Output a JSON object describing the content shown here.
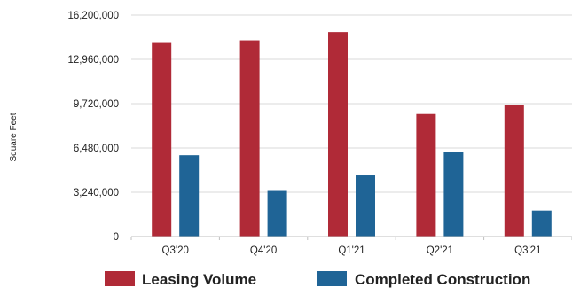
{
  "chart_data": {
    "type": "bar",
    "title": "",
    "xlabel": "",
    "ylabel": "Square Feet",
    "categories": [
      "Q3'20",
      "Q4'20",
      "Q1'21",
      "Q2'21",
      "Q3'21"
    ],
    "series": [
      {
        "name": "Leasing Volume",
        "color": "#b02a37",
        "values": [
          14220000,
          14350000,
          14960000,
          8960000,
          9640000
        ]
      },
      {
        "name": "Completed Construction",
        "color": "#1f6496",
        "values": [
          5950000,
          3400000,
          4470000,
          6220000,
          1900000
        ]
      }
    ],
    "ylim": [
      0,
      16200000
    ],
    "yticks": [
      "0",
      "3,240,000",
      "6,480,000",
      "9,720,000",
      "12,960,000",
      "16,200,000"
    ],
    "grid": true,
    "legend_position": "bottom"
  }
}
